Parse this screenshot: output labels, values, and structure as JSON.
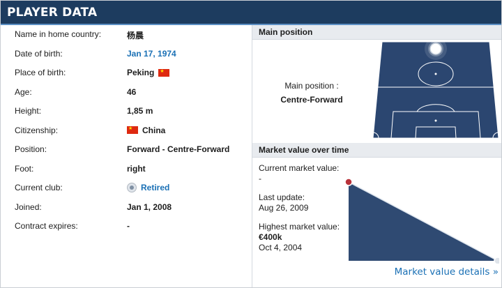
{
  "header": {
    "title": "PLAYER DATA"
  },
  "details": [
    {
      "label": "Name in home country:",
      "value": "杨晨"
    },
    {
      "label": "Date of birth:",
      "value": "Jan 17, 1974",
      "link": true
    },
    {
      "label": "Place of birth:",
      "value": "Peking",
      "flag": "china-flag"
    },
    {
      "label": "Age:",
      "value": "46"
    },
    {
      "label": "Height:",
      "value": "1,85 m"
    },
    {
      "label": "Citizenship:",
      "value": "China",
      "flag_before": "china-flag"
    },
    {
      "label": "Position:",
      "value": "Forward - Centre-Forward"
    },
    {
      "label": "Foot:",
      "value": "right"
    },
    {
      "label": "Current club:",
      "value": "Retired",
      "link": true,
      "icon": "club-crest-icon"
    },
    {
      "label": "Joined:",
      "value": "Jan 1, 2008"
    },
    {
      "label": "Contract expires:",
      "value": "-"
    }
  ],
  "main_position": {
    "heading": "Main position",
    "label": "Main position :",
    "value": "Centre-Forward"
  },
  "market_value": {
    "heading": "Market value over time",
    "current_label": "Current market value:",
    "current_value": "-",
    "update_label": "Last update:",
    "update_value": "Aug 26, 2009",
    "highest_label": "Highest market value:",
    "highest_value": "€400k",
    "highest_date": "Oct 4, 2004",
    "details_link": "Market value details »"
  },
  "chart_data": {
    "type": "area",
    "x": [
      "Oct 4, 2004",
      "Aug 26, 2009"
    ],
    "series": [
      {
        "values": [
          400,
          0
        ]
      }
    ],
    "ylim": [
      0,
      400
    ]
  },
  "colors": {
    "header_bg": "#1d3c5f",
    "pitch": "#2b4670",
    "link": "#1a70b5",
    "area": "#2f4a72"
  }
}
